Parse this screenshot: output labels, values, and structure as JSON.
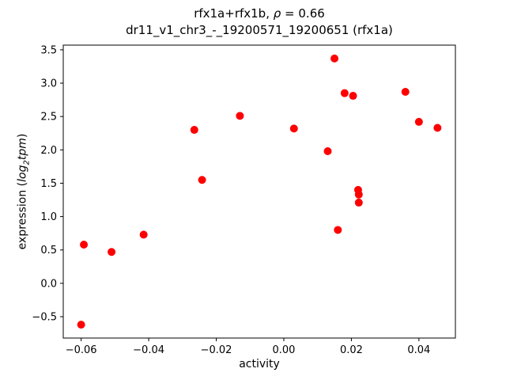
{
  "figure": {
    "title": {
      "pre": "rfx1a+rfx1b, ",
      "rho": "ρ",
      "post": " = 0.66"
    },
    "subtitle": "dr11_v1_chr3_-_19200571_19200651 (rfx1a)",
    "xlabel": "activity",
    "ylabel": {
      "pre": "expression (",
      "math_word": "log",
      "sub": "2",
      "math_word2": "tpm",
      "close": ")"
    }
  },
  "chart_data": {
    "type": "scatter",
    "title": "rfx1a+rfx1b, ρ = 0.66",
    "subtitle": "dr11_v1_chr3_-_19200571_19200651 (rfx1a)",
    "xlabel": "activity",
    "ylabel": "expression (log₂tpm)",
    "marker_color": "#ff0000",
    "axis_color": "#000000",
    "grid": false,
    "legend": null,
    "xlim": [
      -0.0653,
      0.0508
    ],
    "ylim": [
      -0.82,
      3.57
    ],
    "xticks": [
      -0.06,
      -0.04,
      -0.02,
      0.0,
      0.02,
      0.04
    ],
    "yticks": [
      -0.5,
      0.0,
      0.5,
      1.0,
      1.5,
      2.0,
      2.5,
      3.0,
      3.5
    ],
    "points": [
      [
        -0.06,
        -0.62
      ],
      [
        -0.0592,
        0.58
      ],
      [
        -0.051,
        0.47
      ],
      [
        -0.0415,
        0.73
      ],
      [
        -0.0265,
        2.3
      ],
      [
        -0.0242,
        1.55
      ],
      [
        -0.013,
        2.51
      ],
      [
        0.003,
        2.32
      ],
      [
        0.013,
        1.98
      ],
      [
        0.015,
        3.37
      ],
      [
        0.016,
        0.8
      ],
      [
        0.018,
        2.85
      ],
      [
        0.0205,
        2.81
      ],
      [
        0.022,
        1.4
      ],
      [
        0.0222,
        1.33
      ],
      [
        0.0222,
        1.21
      ],
      [
        0.036,
        2.87
      ],
      [
        0.04,
        2.42
      ],
      [
        0.0455,
        2.33
      ]
    ]
  }
}
